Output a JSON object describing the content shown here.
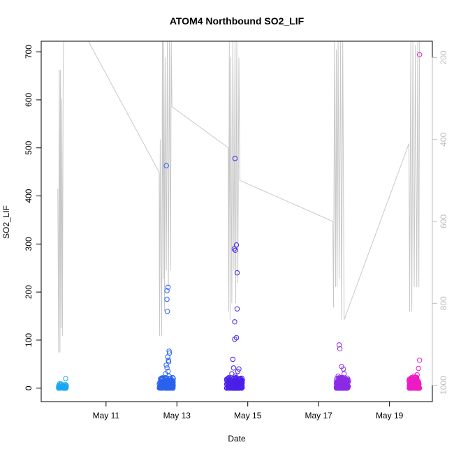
{
  "chart_data": {
    "type": "scatter",
    "title": "ATOM4 Northbound SO2_LIF",
    "xlabel": "Date",
    "ylabel": "SO2_LIF",
    "x_ticks": [
      "May 11",
      "May 13",
      "May 15",
      "May 17",
      "May 19"
    ],
    "x_tick_days": [
      11,
      13,
      15,
      17,
      19
    ],
    "xlim_days": [
      9.17,
      20.21
    ],
    "ylim": [
      -28,
      722
    ],
    "y_ticks": [
      0,
      100,
      200,
      300,
      400,
      500,
      600,
      700
    ],
    "right_axis": {
      "label": "",
      "ylim_reversed": [
        1040,
        160
      ],
      "ticks": [
        200,
        400,
        600,
        800,
        1000
      ],
      "color": "#bdbdbd"
    },
    "grid": false,
    "legend": "none",
    "colors": {
      "pressure_line": "#c8c8c8",
      "axes": "#000000",
      "flight1": "#19a7f5",
      "flight2": "#2a62ee",
      "flight3": "#4a20e8",
      "flight4": "#8b2ae6",
      "flight5": "#ee1cc4"
    },
    "flights": [
      {
        "x_range": [
          9.65,
          9.88
        ],
        "points": [
          [
            9.7,
            2
          ],
          [
            9.72,
            5
          ],
          [
            9.74,
            8
          ],
          [
            9.76,
            3
          ],
          [
            9.78,
            6
          ],
          [
            9.8,
            1
          ],
          [
            9.82,
            4
          ],
          [
            9.84,
            7
          ],
          [
            9.86,
            20
          ],
          [
            9.88,
            5
          ],
          [
            9.66,
            0
          ],
          [
            9.69,
            9
          ]
        ]
      },
      {
        "x_range": [
          12.5,
          12.9
        ],
        "points": [
          [
            12.7,
            463
          ],
          [
            12.75,
            210
          ],
          [
            12.72,
            203
          ],
          [
            12.72,
            185
          ],
          [
            12.73,
            160
          ],
          [
            12.78,
            77
          ],
          [
            12.79,
            73
          ],
          [
            12.74,
            65
          ],
          [
            12.76,
            58
          ],
          [
            12.77,
            55
          ],
          [
            12.7,
            48
          ],
          [
            12.72,
            42
          ],
          [
            12.75,
            35
          ],
          [
            12.68,
            30
          ],
          [
            12.78,
            25
          ],
          [
            12.71,
            20
          ],
          [
            12.74,
            15
          ],
          [
            12.69,
            12
          ],
          [
            12.76,
            10
          ],
          [
            12.66,
            8
          ],
          [
            12.62,
            5
          ],
          [
            12.58,
            3
          ],
          [
            12.55,
            2
          ],
          [
            12.52,
            12
          ],
          [
            12.84,
            18
          ],
          [
            12.8,
            14
          ],
          [
            12.64,
            6
          ],
          [
            12.6,
            1
          ]
        ]
      },
      {
        "x_range": [
          14.4,
          14.85
        ],
        "points": [
          [
            14.64,
            478
          ],
          [
            14.68,
            298
          ],
          [
            14.62,
            290
          ],
          [
            14.65,
            287
          ],
          [
            14.7,
            240
          ],
          [
            14.7,
            165
          ],
          [
            14.63,
            138
          ],
          [
            14.68,
            105
          ],
          [
            14.63,
            102
          ],
          [
            14.58,
            60
          ],
          [
            14.6,
            42
          ],
          [
            14.75,
            40
          ],
          [
            14.72,
            35
          ],
          [
            14.55,
            30
          ],
          [
            14.65,
            25
          ],
          [
            14.78,
            20
          ],
          [
            14.5,
            18
          ],
          [
            14.68,
            15
          ],
          [
            14.8,
            12
          ],
          [
            14.58,
            10
          ],
          [
            14.7,
            8
          ],
          [
            14.48,
            5
          ],
          [
            14.62,
            3
          ],
          [
            14.75,
            2
          ],
          [
            14.53,
            12
          ],
          [
            14.82,
            6
          ],
          [
            14.45,
            14
          ],
          [
            14.66,
            22
          ]
        ]
      },
      {
        "x_range": [
          17.5,
          17.85
        ],
        "points": [
          [
            17.58,
            90
          ],
          [
            17.6,
            82
          ],
          [
            17.65,
            45
          ],
          [
            17.7,
            40
          ],
          [
            17.72,
            30
          ],
          [
            17.55,
            25
          ],
          [
            17.68,
            20
          ],
          [
            17.8,
            18
          ],
          [
            17.62,
            15
          ],
          [
            17.75,
            12
          ],
          [
            17.52,
            10
          ],
          [
            17.66,
            8
          ],
          [
            17.82,
            5
          ],
          [
            17.58,
            3
          ],
          [
            17.74,
            2
          ],
          [
            17.63,
            22
          ],
          [
            17.78,
            14
          ],
          [
            17.54,
            6
          ]
        ]
      },
      {
        "x_range": [
          19.55,
          19.85
        ],
        "points": [
          [
            19.85,
            694
          ],
          [
            19.85,
            58
          ],
          [
            19.82,
            41
          ],
          [
            19.78,
            28
          ],
          [
            19.7,
            25
          ],
          [
            19.75,
            20
          ],
          [
            19.65,
            15
          ],
          [
            19.8,
            12
          ],
          [
            19.6,
            10
          ],
          [
            19.72,
            8
          ],
          [
            19.68,
            5
          ],
          [
            19.58,
            3
          ],
          [
            19.83,
            2
          ],
          [
            19.62,
            18
          ],
          [
            19.77,
            22
          ]
        ]
      }
    ],
    "pressure_line": [
      [
        9.64,
        520
      ],
      [
        9.66,
        920
      ],
      [
        9.68,
        230
      ],
      [
        9.7,
        920
      ],
      [
        9.71,
        230
      ],
      [
        9.73,
        860
      ],
      [
        9.75,
        300
      ],
      [
        9.77,
        880
      ],
      [
        9.79,
        250
      ],
      [
        9.8,
        160
      ],
      [
        10.5,
        160
      ],
      [
        12.5,
        480
      ],
      [
        12.51,
        880
      ],
      [
        12.53,
        400
      ],
      [
        12.55,
        700
      ],
      [
        12.57,
        880
      ],
      [
        12.59,
        160
      ],
      [
        12.61,
        740
      ],
      [
        12.63,
        160
      ],
      [
        12.65,
        820
      ],
      [
        12.67,
        200
      ],
      [
        12.7,
        720
      ],
      [
        12.73,
        160
      ],
      [
        12.76,
        760
      ],
      [
        12.79,
        160
      ],
      [
        12.82,
        720
      ],
      [
        12.84,
        160
      ],
      [
        12.86,
        320
      ],
      [
        14.45,
        420
      ],
      [
        14.46,
        820
      ],
      [
        14.48,
        160
      ],
      [
        14.5,
        840
      ],
      [
        14.52,
        200
      ],
      [
        14.55,
        800
      ],
      [
        14.58,
        160
      ],
      [
        14.61,
        720
      ],
      [
        14.64,
        160
      ],
      [
        14.66,
        800
      ],
      [
        14.69,
        160
      ],
      [
        14.72,
        750
      ],
      [
        14.75,
        200
      ],
      [
        14.77,
        420
      ],
      [
        14.78,
        500
      ],
      [
        17.4,
        600
      ],
      [
        17.42,
        810
      ],
      [
        17.45,
        160
      ],
      [
        17.48,
        760
      ],
      [
        17.5,
        180
      ],
      [
        17.52,
        760
      ],
      [
        17.55,
        160
      ],
      [
        17.58,
        740
      ],
      [
        17.62,
        160
      ],
      [
        17.65,
        840
      ],
      [
        17.68,
        160
      ],
      [
        17.72,
        840
      ],
      [
        19.55,
        410
      ],
      [
        19.57,
        820
      ],
      [
        19.6,
        160
      ],
      [
        19.63,
        820
      ],
      [
        19.66,
        160
      ],
      [
        19.7,
        760
      ],
      [
        19.73,
        170
      ],
      [
        19.77,
        760
      ],
      [
        19.8,
        160
      ],
      [
        19.83,
        760
      ],
      [
        19.85,
        160
      ]
    ]
  }
}
